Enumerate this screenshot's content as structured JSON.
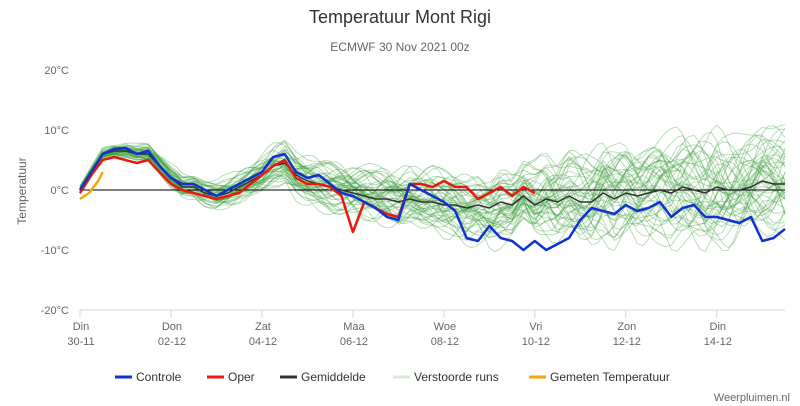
{
  "chart_data": {
    "type": "line",
    "title": "Temperatuur Mont Rigi",
    "subtitle": "ECMWF 30 Nov 2021 00z",
    "ylabel": "Temperatuur",
    "ylim": [
      -20,
      20
    ],
    "y_ticks": [
      {
        "value": 20,
        "label": "20°C"
      },
      {
        "value": 10,
        "label": "10°C"
      },
      {
        "value": 0,
        "label": "0°C"
      },
      {
        "value": -10,
        "label": "-10°C"
      },
      {
        "value": -20,
        "label": "-20°C"
      }
    ],
    "xlim": [
      0,
      15.5
    ],
    "x_unit": "days since Din 30-11 00:00",
    "x_ticks": [
      {
        "value": 0,
        "day": "Din",
        "date": "30-11"
      },
      {
        "value": 2,
        "day": "Don",
        "date": "02-12"
      },
      {
        "value": 4,
        "day": "Zat",
        "date": "04-12"
      },
      {
        "value": 6,
        "day": "Maa",
        "date": "06-12"
      },
      {
        "value": 8,
        "day": "Woe",
        "date": "08-12"
      },
      {
        "value": 10,
        "day": "Vri",
        "date": "10-12"
      },
      {
        "value": 12,
        "day": "Zon",
        "date": "12-12"
      },
      {
        "value": 14,
        "day": "Din",
        "date": "14-12"
      }
    ],
    "series": [
      {
        "name": "Controle",
        "color": "#1032cf",
        "x": [
          0,
          0.25,
          0.5,
          0.75,
          1.0,
          1.25,
          1.5,
          1.75,
          2.0,
          2.25,
          2.5,
          2.75,
          3.0,
          3.25,
          3.5,
          3.75,
          4.0,
          4.25,
          4.5,
          4.75,
          5.0,
          5.25,
          5.5,
          5.75,
          6.0,
          6.25,
          6.5,
          6.75,
          7.0,
          7.25,
          7.5,
          7.75,
          8.0,
          8.25,
          8.5,
          8.75,
          9.0,
          9.25,
          9.5,
          9.75,
          10.0,
          10.25,
          10.5,
          10.75,
          11.0,
          11.25,
          11.5,
          11.75,
          12.0,
          12.25,
          12.5,
          12.75,
          13.0,
          13.25,
          13.5,
          13.75,
          14.0,
          14.25,
          14.5,
          14.75,
          15.0,
          15.25,
          15.5
        ],
        "values": [
          0,
          3,
          6,
          6.8,
          7,
          6,
          6.5,
          4,
          2,
          1,
          1,
          0,
          -1,
          0,
          1,
          2,
          3,
          5.5,
          6,
          3,
          2,
          2.5,
          1,
          -0.5,
          -1,
          -2,
          -3,
          -4.5,
          -5,
          1,
          0,
          -1,
          -2,
          -3.5,
          -8,
          -8.5,
          -6,
          -8,
          -8.5,
          -10,
          -8.5,
          -10,
          -9,
          -8,
          -5,
          -3,
          -3.5,
          -4,
          -2.5,
          -3.5,
          -3,
          -2,
          -4.5,
          -3,
          -2.5,
          -4.5,
          -4.5,
          -5,
          -5.5,
          -4.5,
          -8.5,
          -8,
          -6.5
        ]
      },
      {
        "name": "Oper",
        "color": "#e81a0d",
        "x": [
          0,
          0.25,
          0.5,
          0.75,
          1.0,
          1.25,
          1.5,
          1.75,
          2.0,
          2.25,
          2.5,
          2.75,
          3.0,
          3.25,
          3.5,
          3.75,
          4.0,
          4.25,
          4.5,
          4.75,
          5.0,
          5.25,
          5.5,
          5.75,
          6.0,
          6.25,
          6.5,
          6.75,
          7.0,
          7.25,
          7.5,
          7.75,
          8.0,
          8.25,
          8.5,
          8.75,
          9.0,
          9.25,
          9.5,
          9.75,
          10.0
        ],
        "values": [
          -0.5,
          2.5,
          5,
          5.5,
          5,
          4.5,
          5,
          3,
          1,
          0,
          -0.5,
          -1,
          -1.5,
          -1,
          -0.5,
          1,
          2.5,
          4,
          5,
          2,
          1,
          1,
          0.5,
          -1,
          -7,
          -2,
          -3,
          -4,
          -4.5,
          1,
          1,
          0.5,
          1.5,
          0.5,
          0.5,
          -1.5,
          -0.5,
          0.5,
          -1,
          0.5,
          -0.5
        ]
      },
      {
        "name": "Gemiddelde",
        "color": "#333333",
        "x": [
          0,
          0.25,
          0.5,
          0.75,
          1.0,
          1.25,
          1.5,
          1.75,
          2.0,
          2.25,
          2.5,
          2.75,
          3.0,
          3.25,
          3.5,
          3.75,
          4.0,
          4.25,
          4.5,
          4.75,
          5.0,
          5.25,
          5.5,
          5.75,
          6.0,
          6.25,
          6.5,
          6.75,
          7.0,
          7.25,
          7.5,
          7.75,
          8.0,
          8.25,
          8.5,
          8.75,
          9.0,
          9.25,
          9.5,
          9.75,
          10.0,
          10.25,
          10.5,
          10.75,
          11.0,
          11.25,
          11.5,
          11.75,
          12.0,
          12.25,
          12.5,
          12.75,
          13.0,
          13.25,
          13.5,
          13.75,
          14.0,
          14.25,
          14.5,
          14.75,
          15.0,
          15.25,
          15.5
        ],
        "values": [
          0,
          3,
          6,
          6.5,
          6.5,
          6,
          6,
          4,
          2,
          0.5,
          0.5,
          -0.5,
          -1,
          -0.5,
          0.5,
          1.5,
          2.5,
          4,
          4.5,
          2.5,
          1.5,
          1,
          0.5,
          0,
          -0.5,
          -1,
          -1.5,
          -1.5,
          -2,
          -1.5,
          -2,
          -2,
          -2.5,
          -2.5,
          -3,
          -2.5,
          -3,
          -2,
          -2.5,
          -1,
          -2.5,
          -1.5,
          -2,
          -1,
          -2,
          -2,
          -0.5,
          -1.5,
          -0.5,
          -1,
          -0.5,
          0,
          -0.5,
          0.5,
          0,
          -0.5,
          0.5,
          0,
          0,
          0.5,
          1.5,
          1,
          1
        ]
      },
      {
        "name": "Verstoorde runs",
        "color": "#d6ecd2",
        "plot_color": "#3a9e3a",
        "mean": "Gemiddelde"
      },
      {
        "name": "Gemeten Temperatuur",
        "color": "#f4a700",
        "x": [
          0,
          0.1,
          0.2,
          0.3,
          0.4,
          0.5
        ],
        "values": [
          -1.5,
          -1,
          -0.5,
          0.5,
          1.5,
          3
        ]
      }
    ],
    "legend": [
      "Controle",
      "Oper",
      "Gemiddelde",
      "Verstoorde runs",
      "Gemeten Temperatuur"
    ],
    "legend_position": "bottom",
    "grid": false
  },
  "credit": "Weerpluimen.nl"
}
